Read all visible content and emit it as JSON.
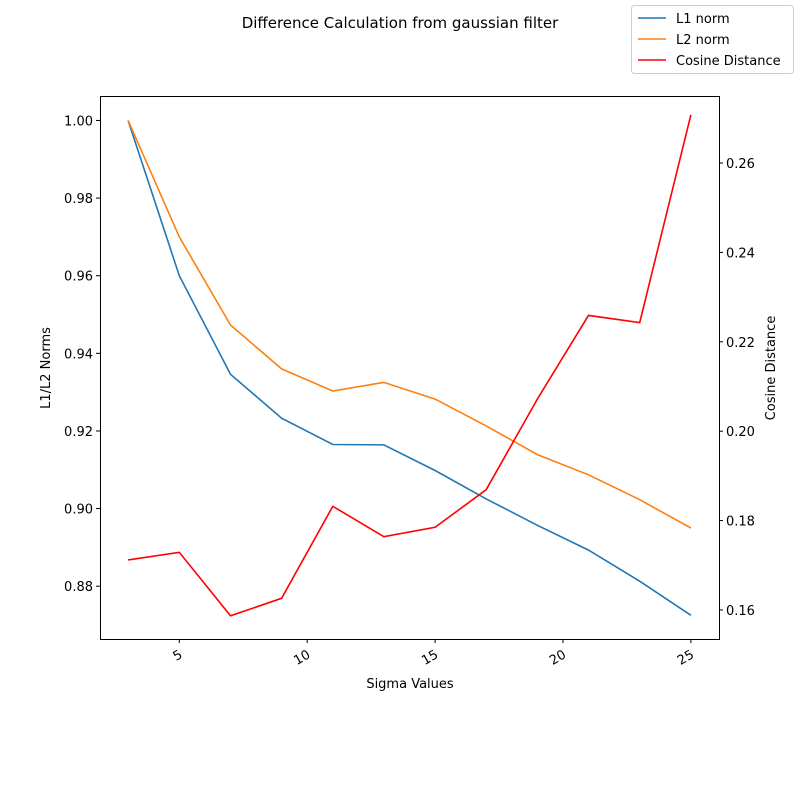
{
  "chart_data": {
    "type": "line",
    "title": "Difference Calculation from gaussian filter",
    "xlabel": "Sigma Values",
    "ylabel_left": "L1/L2 Norms",
    "ylabel_right": "Cosine Distance",
    "xlim": [
      1.9,
      26.1
    ],
    "ylim_left": [
      0.8664,
      1.0063
    ],
    "ylim_right": [
      0.1535,
      0.275
    ],
    "x_ticks": [
      5,
      10,
      15,
      20,
      25
    ],
    "y_ticks_left": [
      0.88,
      0.9,
      0.92,
      0.94,
      0.96,
      0.98,
      1.0
    ],
    "y_ticks_right": [
      0.16,
      0.18,
      0.2,
      0.22,
      0.24,
      0.26
    ],
    "x": [
      3,
      5,
      7,
      9,
      11,
      13,
      15,
      17,
      19,
      21,
      23,
      25
    ],
    "series": [
      {
        "name": "L1 norm",
        "axis": "left",
        "color": "#1f77b4",
        "values": [
          1.0,
          0.96,
          0.9346,
          0.9233,
          0.9165,
          0.9164,
          0.9098,
          0.9025,
          0.8957,
          0.8893,
          0.8813,
          0.8725
        ]
      },
      {
        "name": "L2 norm",
        "axis": "left",
        "color": "#ff7f0e",
        "values": [
          1.0,
          0.97,
          0.9473,
          0.936,
          0.9303,
          0.9325,
          0.9282,
          0.9213,
          0.9139,
          0.9087,
          0.9023,
          0.895
        ]
      },
      {
        "name": "Cosine Distance",
        "axis": "right",
        "color": "#ff0000",
        "values": [
          0.1712,
          0.1729,
          0.1587,
          0.1626,
          0.1832,
          0.1764,
          0.1785,
          0.1869,
          0.2072,
          0.2259,
          0.2243,
          0.2708
        ]
      }
    ],
    "legend_position": "top-right",
    "grid": false
  }
}
